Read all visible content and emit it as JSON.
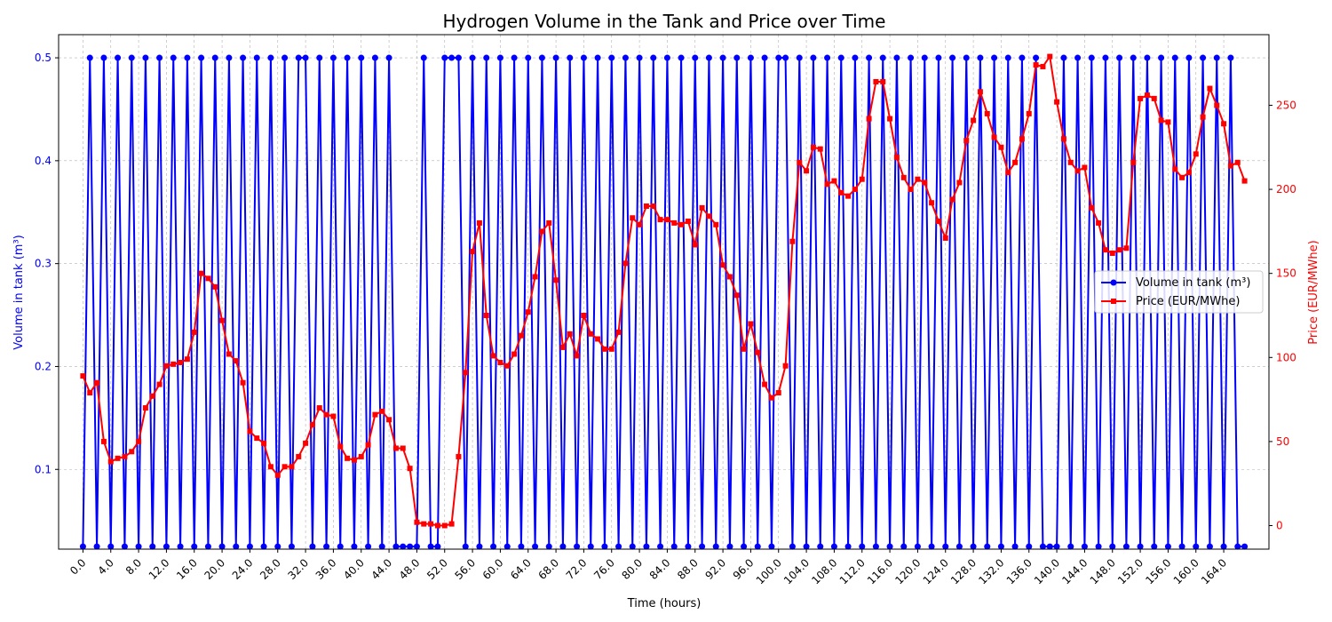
{
  "chart_data": {
    "type": "line",
    "title": "Hydrogen Volume in the Tank and Price over Time",
    "xlabel": "Time (hours)",
    "ylabel_left": "Volume in tank (m³)",
    "ylabel_right": "Price (EUR/MWhe)",
    "xlim": [
      -3.5,
      170.5
    ],
    "ylim_left": [
      0.0225,
      0.5225
    ],
    "ylim_right": [
      -14,
      292
    ],
    "x_ticks": [
      0,
      4,
      8,
      12,
      16,
      20,
      24,
      28,
      32,
      36,
      40,
      44,
      48,
      52,
      56,
      60,
      64,
      68,
      72,
      76,
      80,
      84,
      88,
      92,
      96,
      100,
      104,
      108,
      112,
      116,
      120,
      124,
      128,
      132,
      136,
      140,
      144,
      148,
      152,
      156,
      160,
      164
    ],
    "x_tick_labels": [
      "0.0",
      "4.0",
      "8.0",
      "12.0",
      "16.0",
      "20.0",
      "24.0",
      "28.0",
      "32.0",
      "36.0",
      "40.0",
      "44.0",
      "48.0",
      "52.0",
      "56.0",
      "60.0",
      "64.0",
      "68.0",
      "72.0",
      "76.0",
      "80.0",
      "84.0",
      "88.0",
      "92.0",
      "96.0",
      "100.0",
      "104.0",
      "108.0",
      "112.0",
      "116.0",
      "120.0",
      "124.0",
      "128.0",
      "132.0",
      "136.0",
      "140.0",
      "144.0",
      "148.0",
      "152.0",
      "156.0",
      "160.0",
      "164.0"
    ],
    "y_left_ticks": [
      0.1,
      0.2,
      0.3,
      0.4,
      0.5
    ],
    "y_left_tick_labels": [
      "0.1",
      "0.2",
      "0.3",
      "0.4",
      "0.5"
    ],
    "y_right_ticks": [
      0,
      50,
      100,
      150,
      200,
      250
    ],
    "y_right_tick_labels": [
      "0",
      "50",
      "100",
      "150",
      "200",
      "250"
    ],
    "grid": true,
    "legend_position": "center-right",
    "series": [
      {
        "name": "Volume in tank (m³)",
        "color": "#0000ff",
        "marker": "circle",
        "axis": "left",
        "low": 0.025,
        "high": 0.5,
        "high_hours": [
          1,
          3,
          5,
          7,
          9,
          11,
          13,
          15,
          17,
          19,
          21,
          23,
          25,
          27,
          29,
          31,
          32,
          34,
          36,
          38,
          40,
          42,
          44,
          49,
          52,
          53,
          54,
          56,
          58,
          60,
          62,
          64,
          66,
          68,
          70,
          72,
          74,
          76,
          78,
          80,
          82,
          84,
          86,
          88,
          90,
          92,
          94,
          96,
          98,
          100,
          101,
          103,
          105,
          107,
          109,
          111,
          113,
          115,
          117,
          119,
          121,
          123,
          125,
          127,
          129,
          131,
          133,
          135,
          137,
          141,
          143,
          145,
          147,
          149,
          151,
          153,
          155,
          157,
          159,
          161,
          163,
          165
        ]
      },
      {
        "name": "Price (EUR/MWhe)",
        "color": "#ff0000",
        "marker": "square",
        "axis": "right",
        "values": [
          89,
          79,
          85,
          50,
          38,
          40,
          41,
          44,
          50,
          70,
          77,
          84,
          95,
          96,
          97,
          99,
          115,
          150,
          147,
          142,
          122,
          102,
          98,
          85,
          56,
          52,
          49,
          35,
          30,
          35,
          35,
          41,
          49,
          60,
          70,
          66,
          65,
          47,
          40,
          39,
          41,
          48,
          66,
          68,
          63,
          46,
          46,
          34,
          2,
          1,
          1,
          0,
          0,
          1,
          41,
          91,
          163,
          180,
          125,
          101,
          97,
          95,
          102,
          113,
          127,
          148,
          175,
          180,
          146,
          106,
          114,
          101,
          125,
          114,
          111,
          105,
          105,
          115,
          156,
          183,
          179,
          190,
          190,
          182,
          182,
          180,
          179,
          181,
          167,
          189,
          184,
          179,
          155,
          148,
          137,
          105,
          120,
          103,
          84,
          76,
          79,
          95,
          169,
          216,
          211,
          225,
          224,
          203,
          205,
          198,
          196,
          200,
          206,
          242,
          264,
          264,
          242,
          219,
          207,
          200,
          206,
          204,
          192,
          181,
          171,
          194,
          204,
          229,
          241,
          258,
          245,
          231,
          225,
          210,
          216,
          230,
          245,
          274,
          273,
          279,
          252,
          230,
          216,
          211,
          213,
          189,
          180,
          164,
          162,
          164,
          165,
          216,
          254,
          256,
          254,
          241,
          240,
          212,
          207,
          210,
          221,
          243,
          260,
          250,
          239,
          214,
          216,
          205
        ]
      }
    ]
  }
}
